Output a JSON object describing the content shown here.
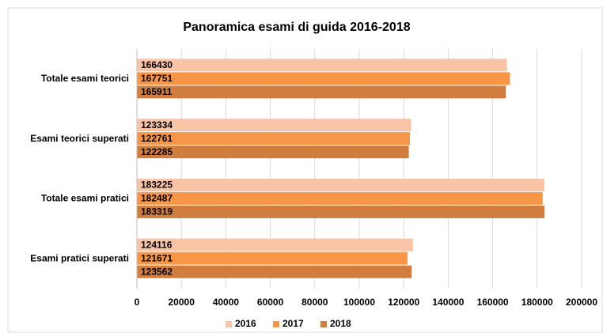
{
  "chart_data": {
    "type": "barh",
    "title": "Panoramica esami di guida 2016-2018",
    "categories": [
      "Totale esami teorici",
      "Esami teorici superati",
      "Totale esami pratici",
      "Esami pratici superati"
    ],
    "series": [
      {
        "name": "2016",
        "color": "#f9c4a5",
        "values": [
          166430,
          123334,
          183225,
          124116
        ]
      },
      {
        "name": "2017",
        "color": "#f79646",
        "values": [
          167751,
          122761,
          182487,
          121671
        ]
      },
      {
        "name": "2018",
        "color": "#d17d3e",
        "values": [
          165911,
          122285,
          183319,
          123562
        ]
      }
    ],
    "xlim": [
      0,
      200000
    ],
    "xticks": [
      0,
      20000,
      40000,
      60000,
      80000,
      100000,
      120000,
      140000,
      160000,
      180000,
      200000
    ],
    "grid": true,
    "legend": "bottom"
  }
}
